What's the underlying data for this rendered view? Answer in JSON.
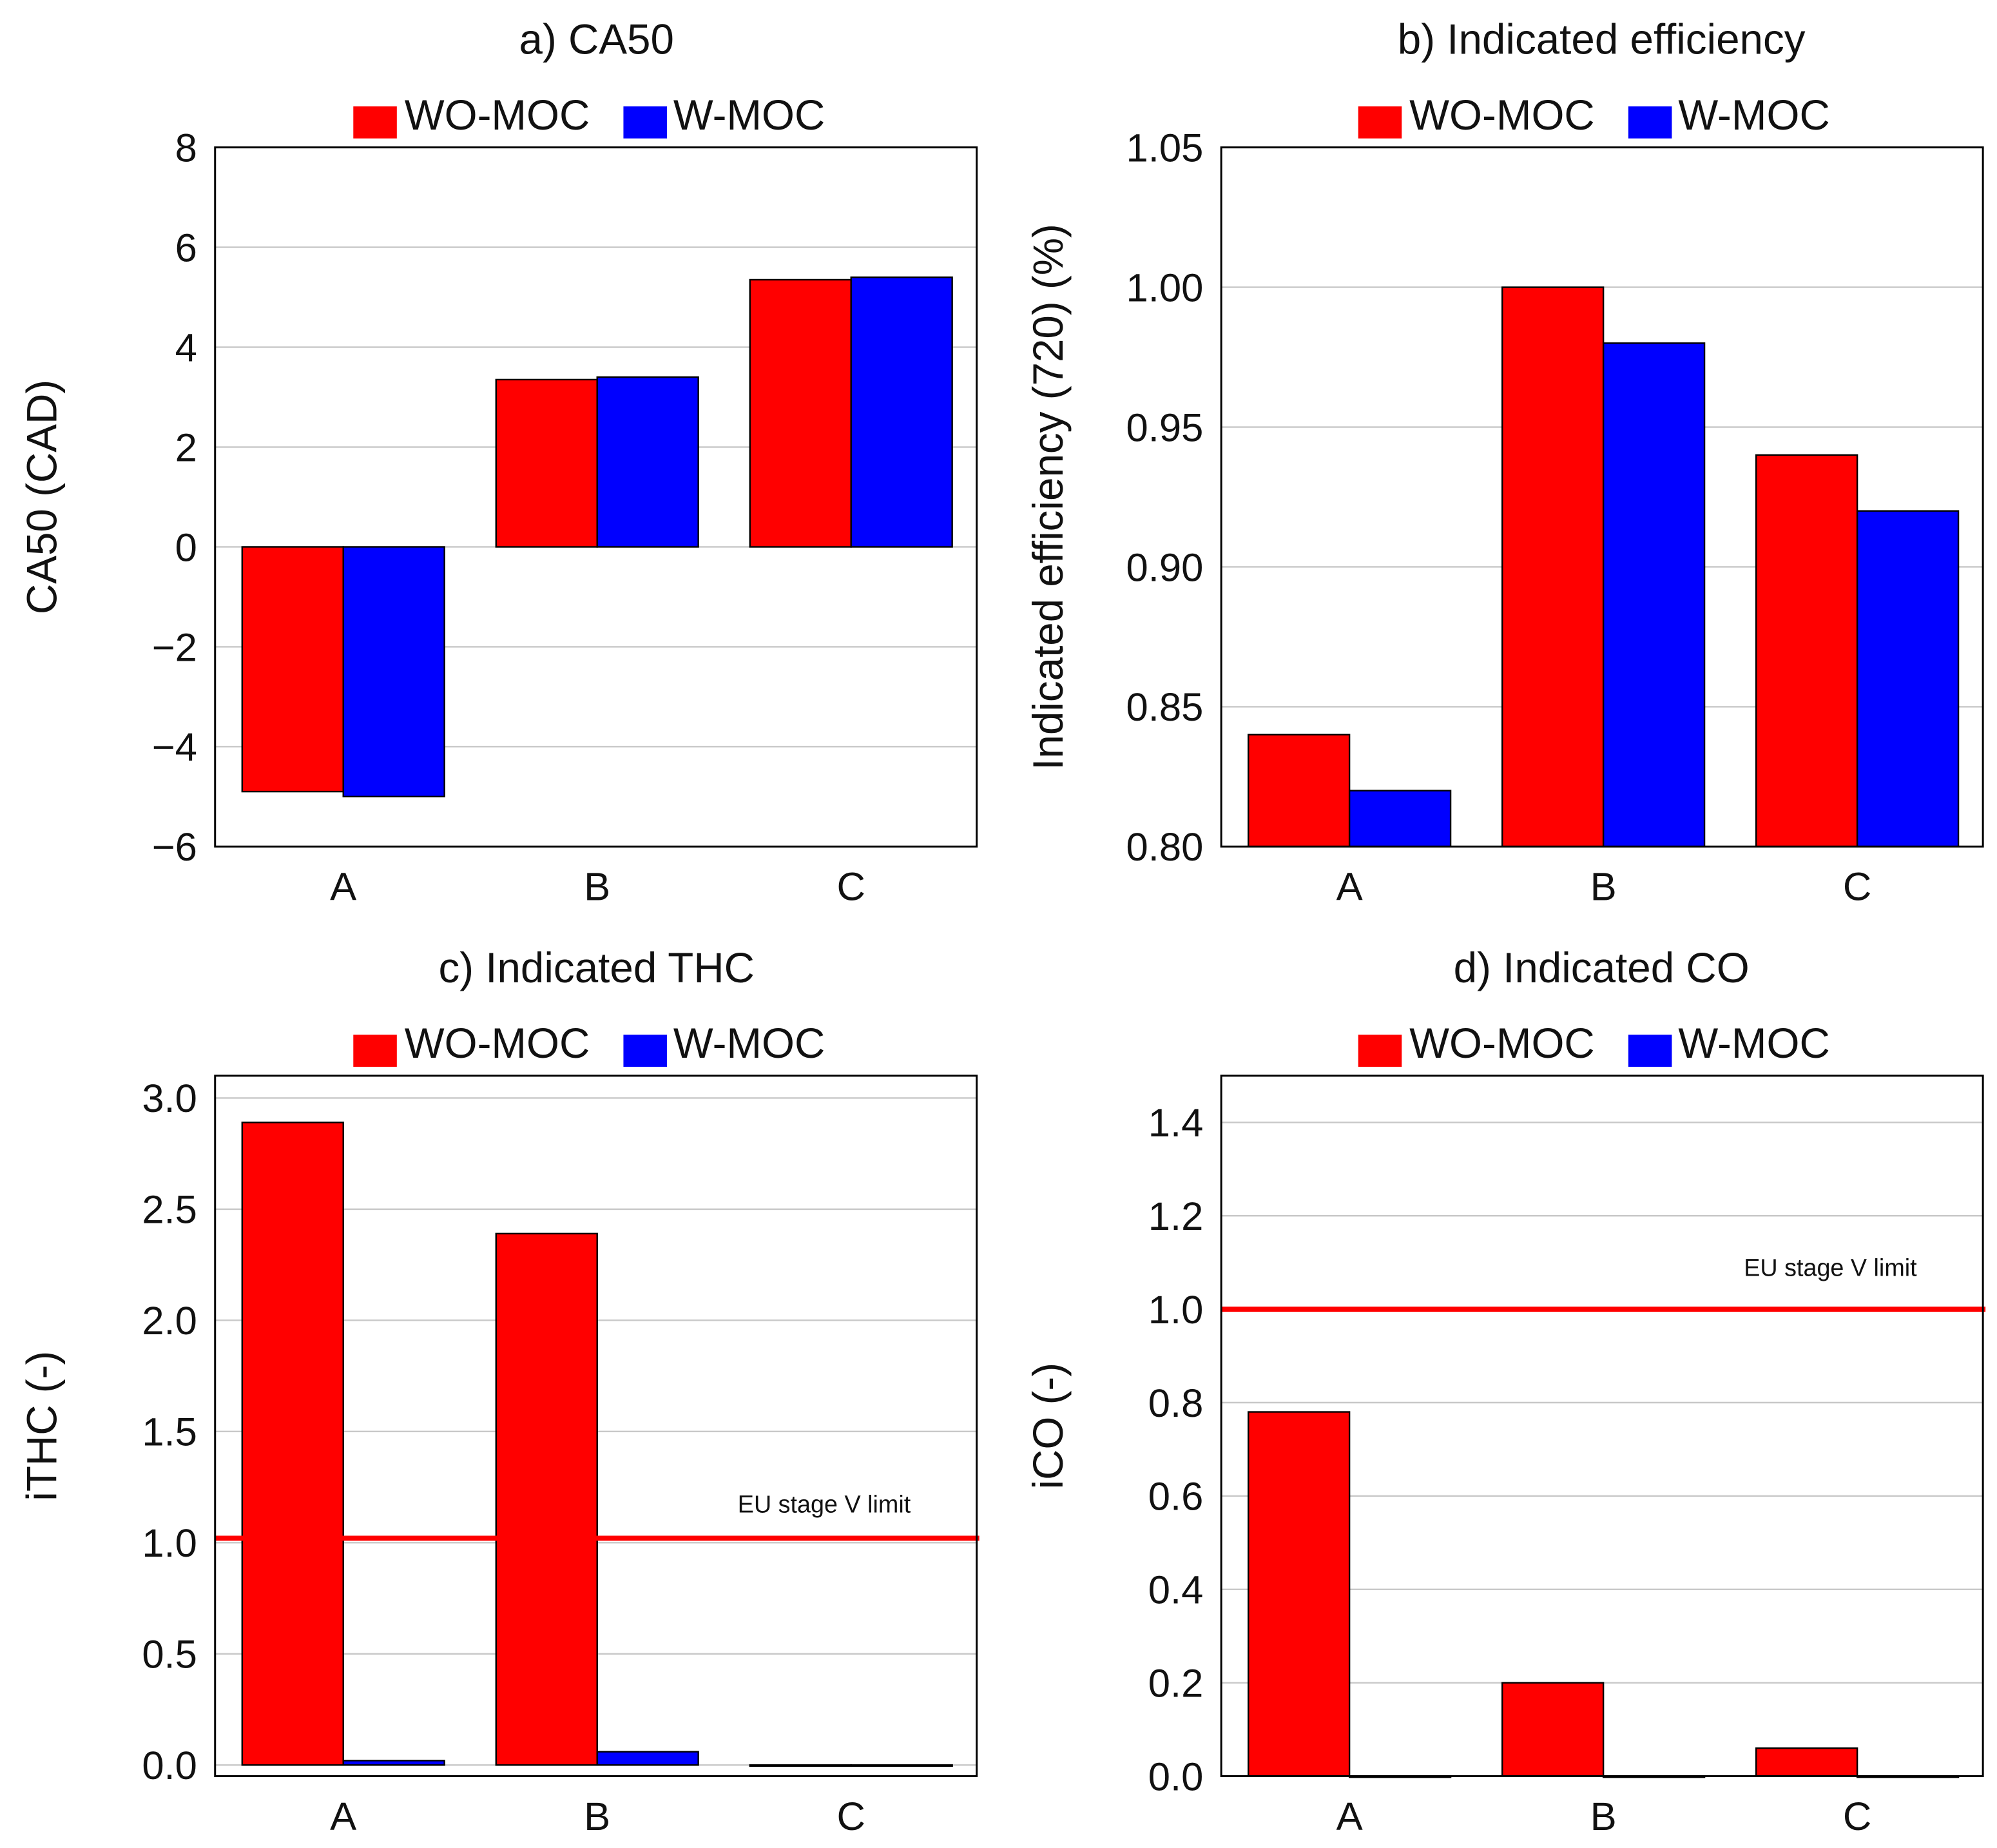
{
  "colors": {
    "wo_moc": "#ff0000",
    "w_moc": "#0000ff",
    "limit": "#ff0000",
    "grid": "#c8c8c8"
  },
  "legend": [
    "WO-MOC",
    "W-MOC"
  ],
  "chart_data": [
    {
      "type": "bar",
      "title": "a) CA50",
      "xlabel": "",
      "ylabel": "CA50 (CAD)",
      "categories": [
        "A",
        "B",
        "C"
      ],
      "series": [
        {
          "name": "WO-MOC",
          "values": [
            -4.9,
            3.35,
            5.35
          ]
        },
        {
          "name": "W-MOC",
          "values": [
            -5.0,
            3.4,
            5.4
          ]
        }
      ],
      "ylim": [
        -6,
        8
      ],
      "yticks": [
        8,
        6,
        4,
        2,
        0,
        -2,
        -4,
        -6
      ],
      "ytick_labels": [
        "8",
        "6",
        "4",
        "2",
        "0",
        "−2",
        "−4",
        "−6"
      ],
      "grid": true,
      "legend_position": "top-center"
    },
    {
      "type": "bar",
      "title": "b) Indicated efficiency",
      "xlabel": "",
      "ylabel": "Indicated efficiency (720) (%)",
      "categories": [
        "A",
        "B",
        "C"
      ],
      "series": [
        {
          "name": "WO-MOC",
          "values": [
            0.84,
            1.0,
            0.94
          ]
        },
        {
          "name": "W-MOC",
          "values": [
            0.82,
            0.98,
            0.92
          ]
        }
      ],
      "ylim": [
        0.8,
        1.05
      ],
      "yticks": [
        1.05,
        1.0,
        0.95,
        0.9,
        0.85,
        0.8
      ],
      "ytick_labels": [
        "1.05",
        "1.00",
        "0.95",
        "0.90",
        "0.85",
        "0.80"
      ],
      "grid": true,
      "legend_position": "top-center"
    },
    {
      "type": "bar",
      "title": "c) Indicated THC",
      "xlabel": "",
      "ylabel": "iTHC (-)",
      "categories": [
        "A",
        "B",
        "C"
      ],
      "series": [
        {
          "name": "WO-MOC",
          "values": [
            2.89,
            2.39,
            0.0
          ]
        },
        {
          "name": "W-MOC",
          "values": [
            0.02,
            0.06,
            0.0
          ]
        }
      ],
      "ylim": [
        -0.05,
        3.1
      ],
      "yticks": [
        3.0,
        2.5,
        2.0,
        1.5,
        1.0,
        0.5,
        0.0
      ],
      "ytick_labels": [
        "3.0",
        "2.5",
        "2.0",
        "1.5",
        "1.0",
        "0.5",
        "0.0"
      ],
      "grid": true,
      "legend_position": "top-center",
      "reference_line": {
        "value": 1.02,
        "label": "EU stage V limit",
        "label_x": "C"
      }
    },
    {
      "type": "bar",
      "title": "d) Indicated CO",
      "xlabel": "",
      "ylabel": "iCO (-)",
      "categories": [
        "A",
        "B",
        "C"
      ],
      "series": [
        {
          "name": "WO-MOC",
          "values": [
            0.78,
            0.2,
            0.06
          ]
        },
        {
          "name": "W-MOC",
          "values": [
            0.0,
            0.0,
            0.0
          ]
        }
      ],
      "ylim": [
        0,
        1.5
      ],
      "yticks": [
        1.4,
        1.2,
        1.0,
        0.8,
        0.6,
        0.4,
        0.2,
        0.0
      ],
      "ytick_labels": [
        "1.4",
        "1.2",
        "1.0",
        "0.8",
        "0.6",
        "0.4",
        "0.2",
        "0.0"
      ],
      "grid": true,
      "legend_position": "top-center",
      "reference_line": {
        "value": 1.0,
        "label": "EU stage V limit",
        "label_x": "C"
      }
    }
  ]
}
